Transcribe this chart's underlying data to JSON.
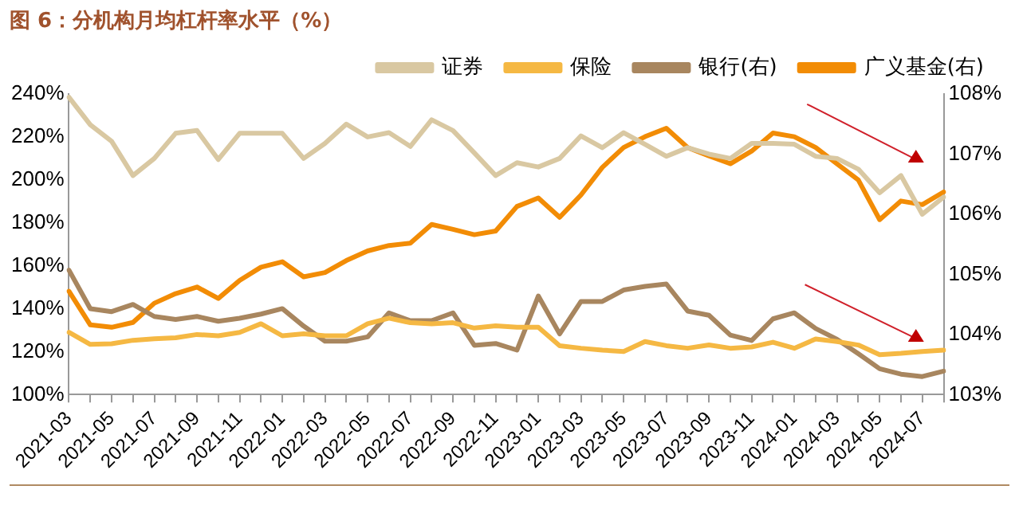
{
  "chart_data": {
    "type": "line",
    "title": "图 6：分机构月均杠杆率水平（%）",
    "categories": [
      "2021-03",
      null,
      "2021-05",
      null,
      "2021-07",
      null,
      "2021-09",
      null,
      "2021-11",
      null,
      "2022-01",
      null,
      "2022-03",
      null,
      "2022-05",
      null,
      "2022-07",
      null,
      "2022-09",
      null,
      "2022-11",
      null,
      "2023-01",
      null,
      "2023-03",
      null,
      "2023-05",
      null,
      "2023-07",
      null,
      "2023-09",
      null,
      "2023-11",
      null,
      "2024-01",
      null,
      "2024-03",
      null,
      "2024-05",
      null,
      "2024-07",
      null
    ],
    "series": [
      {
        "name": "证券",
        "color": "#d9c8a2",
        "values": [
          238.5,
          225.7,
          218,
          202,
          210,
          221.7,
          223,
          209.5,
          221.7,
          221.7,
          221.7,
          210,
          217,
          226,
          220,
          222,
          215.6,
          228,
          223,
          212.6,
          202,
          208,
          206,
          210,
          220.5,
          215,
          222,
          216.6,
          211,
          215,
          212,
          210,
          217,
          217,
          216.6,
          211,
          210,
          205,
          194,
          202,
          184,
          192
        ]
      },
      {
        "name": "保险",
        "color": "#f5b843",
        "values": [
          129,
          123.4,
          123.7,
          125.3,
          126,
          126.5,
          128,
          127.4,
          129,
          133,
          127.4,
          128.3,
          127.4,
          127.4,
          133,
          135.6,
          133.5,
          133,
          133.5,
          131,
          132,
          131.4,
          131.4,
          122.8,
          121.6,
          120.7,
          120.1,
          124.7,
          122.8,
          121.6,
          123.1,
          121.6,
          122.2,
          124.4,
          121.6,
          125.9,
          124.7,
          123.1,
          118.6,
          119.2,
          120.1,
          120.7
        ]
      },
      {
        "name": "银行(右)",
        "color": "#a8865f",
        "axis": "y2",
        "values": [
          105.07,
          104.43,
          104.38,
          104.5,
          104.3,
          104.25,
          104.3,
          104.22,
          104.27,
          104.34,
          104.43,
          104.14,
          103.89,
          103.89,
          103.96,
          104.36,
          104.23,
          104.23,
          104.36,
          103.82,
          103.85,
          103.74,
          104.64,
          104.01,
          104.55,
          104.55,
          104.74,
          104.8,
          104.84,
          104.39,
          104.32,
          103.99,
          103.9,
          104.26,
          104.36,
          104.1,
          103.92,
          103.68,
          103.43,
          103.34,
          103.3,
          103.39
        ]
      },
      {
        "name": "广义基金(右)",
        "color": "#f28c05",
        "axis": "y2",
        "values": [
          104.72,
          104.16,
          104.12,
          104.2,
          104.52,
          104.68,
          104.79,
          104.6,
          104.9,
          105.12,
          105.21,
          104.96,
          105.03,
          105.23,
          105.39,
          105.48,
          105.52,
          105.83,
          105.75,
          105.66,
          105.72,
          106.13,
          106.27,
          105.95,
          106.32,
          106.78,
          107.11,
          107.29,
          107.43,
          107.11,
          106.97,
          106.84,
          107.05,
          107.35,
          107.29,
          107.11,
          106.84,
          106.57,
          105.91,
          106.22,
          106.16,
          106.37
        ]
      }
    ],
    "ylim": [
      100,
      240
    ],
    "yticks": [
      {
        "value": 100,
        "label": "100%"
      },
      {
        "value": 120,
        "label": "120%"
      },
      {
        "value": 140,
        "label": "140%"
      },
      {
        "value": 160,
        "label": "160%"
      },
      {
        "value": 180,
        "label": "180%"
      },
      {
        "value": 200,
        "label": "200%"
      },
      {
        "value": 220,
        "label": "220%"
      },
      {
        "value": 240,
        "label": "240%"
      }
    ],
    "y2lim": [
      103,
      108
    ],
    "y2ticks": [
      {
        "value": 103,
        "label": "103%"
      },
      {
        "value": 104,
        "label": "104%"
      },
      {
        "value": 105,
        "label": "105%"
      },
      {
        "value": 106,
        "label": "106%"
      },
      {
        "value": 107,
        "label": "107%"
      },
      {
        "value": 108,
        "label": "108%"
      }
    ],
    "legend": "top",
    "grid": false,
    "marker": "none",
    "line_style": "solid"
  }
}
